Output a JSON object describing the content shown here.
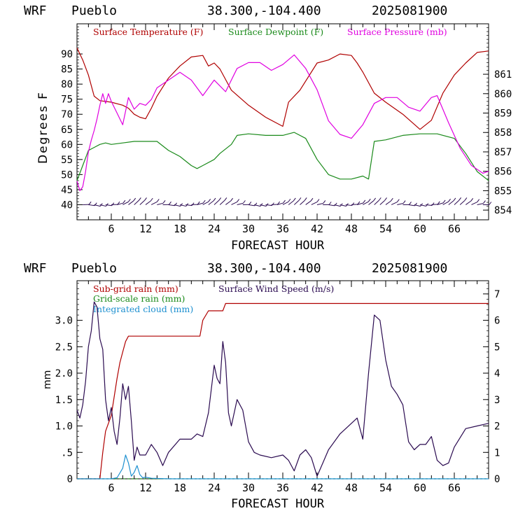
{
  "header": {
    "model": "WRF",
    "station": "Pueblo",
    "coords": "38.300,-104.400",
    "init_time": "2025081900"
  },
  "colors": {
    "temperature": "#b00000",
    "dewpoint": "#1a8a1a",
    "pressure": "#e000e0",
    "subgrid_rain": "#b00000",
    "gridscale_rain": "#1a8a1a",
    "cloud": "#1e90d0",
    "wind": "#2a0a50",
    "axis": "#000000"
  },
  "chart_data": [
    {
      "type": "line",
      "xlabel": "FORECAST HOUR",
      "ylabel": "Degrees F",
      "xlim": [
        0,
        72
      ],
      "ylim": [
        35,
        100
      ],
      "y2lim": [
        853.5,
        863.6
      ],
      "xticks": [
        "6",
        "12",
        "18",
        "24",
        "30",
        "36",
        "42",
        "48",
        "54",
        "60",
        "66"
      ],
      "yticks": [
        "40",
        "45",
        "50",
        "55",
        "60",
        "65",
        "70",
        "75",
        "80",
        "85",
        "90"
      ],
      "y2ticks": [
        "854",
        "855",
        "856",
        "857",
        "858",
        "859",
        "860",
        "861"
      ],
      "legend": [
        "Surface Temperature (F)",
        "Surface Dewpoint (F)",
        "Surface Pressure (mb)"
      ],
      "legend_placement": "top",
      "series": [
        {
          "name": "Surface Temperature (F)",
          "axis": "left",
          "x": [
            0,
            1,
            2,
            3,
            4,
            6,
            8,
            9,
            10,
            11,
            12,
            13,
            14,
            16,
            18,
            20,
            22,
            23,
            24,
            25,
            27,
            30,
            33,
            36,
            37,
            39,
            42,
            44,
            46,
            48,
            49,
            50,
            52,
            54,
            57,
            60,
            62,
            64,
            66,
            68,
            70,
            72
          ],
          "values": [
            92,
            88,
            83,
            76,
            74.5,
            74,
            73,
            72,
            70,
            69,
            68.5,
            72,
            76,
            82,
            86,
            89,
            89.5,
            86,
            87,
            85,
            78,
            73,
            69,
            66,
            74,
            78,
            87,
            88,
            90,
            89.5,
            87,
            84,
            77,
            74,
            70,
            65,
            68,
            77,
            83,
            87,
            90.5,
            91
          ]
        },
        {
          "name": "Surface Dewpoint (F)",
          "axis": "left",
          "x": [
            0,
            1,
            2,
            3,
            4,
            5,
            6,
            8,
            10,
            12,
            14,
            16,
            18,
            20,
            21,
            22,
            24,
            25,
            27,
            28,
            30,
            33,
            36,
            38,
            40,
            42,
            44,
            46,
            48,
            50,
            51,
            52,
            54,
            57,
            60,
            63,
            66,
            68,
            70,
            72
          ],
          "values": [
            48,
            53,
            58,
            59,
            60,
            60.5,
            60,
            60.5,
            61,
            61,
            61,
            58,
            56,
            53,
            52,
            53,
            55,
            57,
            60,
            63,
            63.5,
            63,
            63,
            64,
            62,
            55,
            50,
            48.5,
            48.5,
            49.5,
            48.5,
            61,
            61.5,
            63,
            63.5,
            63.5,
            62,
            57,
            51,
            48
          ]
        },
        {
          "name": "Surface Pressure (mb)",
          "axis": "right",
          "x": [
            0,
            0.5,
            1,
            1.5,
            2,
            2.5,
            3,
            3.5,
            4,
            4.5,
            5,
            5.5,
            6,
            7,
            8,
            9,
            10,
            11,
            12,
            13,
            14,
            16,
            18,
            20,
            22,
            24,
            26,
            28,
            30,
            32,
            34,
            36,
            38,
            40,
            42,
            44,
            46,
            48,
            50,
            52,
            54,
            56,
            58,
            60,
            62,
            63,
            65,
            67,
            69,
            71,
            72
          ],
          "values": [
            855.5,
            855,
            855.2,
            856,
            857,
            857.6,
            858.1,
            858.7,
            859.4,
            860,
            859.5,
            860,
            859.6,
            859,
            858.4,
            859.8,
            859.2,
            859.5,
            859.4,
            859.7,
            860.3,
            860.7,
            861.1,
            860.7,
            859.9,
            860.7,
            860.1,
            861.3,
            861.6,
            861.6,
            861.2,
            861.5,
            862,
            861.3,
            860.2,
            858.6,
            857.9,
            857.7,
            858.4,
            859.5,
            859.8,
            859.8,
            859.3,
            859.1,
            859.8,
            859.9,
            858.5,
            857.2,
            856.3,
            855.9,
            856
          ]
        }
      ],
      "annotations": [
        "wind barbs along y=40"
      ]
    },
    {
      "type": "line",
      "xlabel": "FORECAST HOUR",
      "ylabel": "mm",
      "xlim": [
        0,
        72
      ],
      "ylim": [
        0,
        3.75
      ],
      "y2lim": [
        0,
        7.5
      ],
      "xticks": [
        "6",
        "12",
        "18",
        "24",
        "30",
        "36",
        "42",
        "48",
        "54",
        "60",
        "66"
      ],
      "yticks": [
        "0",
        ".5",
        "1.0",
        "1.5",
        "2.0",
        "2.5",
        "3.0"
      ],
      "y2ticks": [
        "0",
        "1",
        "2",
        "3",
        "4",
        "5",
        "6",
        "7"
      ],
      "legend": [
        "Sub-grid rain (mm)",
        "Grid-scale rain (mm)",
        "Integrated cloud (mm)",
        "Surface Wind Speed (m/s)"
      ],
      "legend_placement": "top",
      "series": [
        {
          "name": "Sub-grid rain (mm)",
          "axis": "left",
          "x": [
            0,
            4,
            4.5,
            5,
            6,
            7,
            7.5,
            8,
            8.5,
            9,
            10,
            12,
            15,
            18,
            21.5,
            22,
            23,
            24,
            25.5,
            26,
            30,
            40,
            50,
            60,
            72
          ],
          "values": [
            0,
            0,
            0.5,
            0.9,
            1.2,
            1.9,
            2.2,
            2.4,
            2.6,
            2.7,
            2.7,
            2.7,
            2.7,
            2.7,
            2.7,
            3.0,
            3.18,
            3.18,
            3.18,
            3.32,
            3.32,
            3.32,
            3.32,
            3.32,
            3.32
          ]
        },
        {
          "name": "Grid-scale rain (mm)",
          "axis": "left",
          "x": [
            0,
            72
          ],
          "values": [
            0,
            0
          ]
        },
        {
          "name": "Integrated cloud (mm)",
          "axis": "left",
          "x": [
            0,
            6,
            7,
            8,
            8.5,
            9,
            9.5,
            10,
            10.5,
            11,
            11.5,
            12,
            13,
            16,
            72
          ],
          "values": [
            0,
            0,
            0.02,
            0.2,
            0.45,
            0.3,
            0.05,
            0.12,
            0.25,
            0.08,
            0.02,
            0.03,
            0.01,
            0,
            0
          ]
        },
        {
          "name": "Surface Wind Speed (m/s)",
          "axis": "right",
          "x": [
            0,
            0.5,
            1,
            1.5,
            2,
            2.5,
            3,
            3.5,
            4,
            4.5,
            5,
            5.5,
            6,
            6.5,
            7,
            7.5,
            8,
            8.5,
            9,
            9.5,
            10,
            10.5,
            11,
            12,
            13,
            14,
            15,
            16,
            18,
            20,
            21,
            22,
            23,
            24,
            24.5,
            25,
            25.5,
            26,
            26.5,
            27,
            28,
            29,
            30,
            31,
            32,
            34,
            36,
            37,
            38,
            39,
            40,
            41,
            42,
            43,
            44,
            46,
            48,
            49,
            50,
            51,
            52,
            53,
            54,
            55,
            56,
            57,
            58,
            59,
            60,
            61,
            62,
            63,
            64,
            65,
            66,
            68,
            70,
            72
          ],
          "values": [
            2.6,
            2.3,
            2.8,
            3.7,
            5,
            5.6,
            6.7,
            6.5,
            5.3,
            4.9,
            3,
            2.2,
            2.7,
            1.8,
            1.3,
            2.3,
            3.6,
            3,
            3.5,
            2.2,
            0.7,
            1.2,
            0.9,
            0.9,
            1.3,
            1.0,
            0.5,
            1.0,
            1.5,
            1.5,
            1.7,
            1.6,
            2.5,
            4.3,
            3.8,
            3.6,
            5.2,
            4.4,
            2.5,
            2.0,
            3.0,
            2.6,
            1.4,
            1.0,
            0.9,
            0.8,
            0.9,
            0.7,
            0.3,
            0.9,
            1.1,
            0.8,
            0.1,
            0.6,
            1.1,
            1.7,
            2.1,
            2.3,
            1.5,
            4.0,
            6.2,
            6.0,
            4.5,
            3.5,
            3.2,
            2.8,
            1.4,
            1.1,
            1.3,
            1.3,
            1.6,
            0.7,
            0.5,
            0.6,
            1.2,
            1.9,
            2.0,
            2.1
          ]
        }
      ]
    }
  ]
}
